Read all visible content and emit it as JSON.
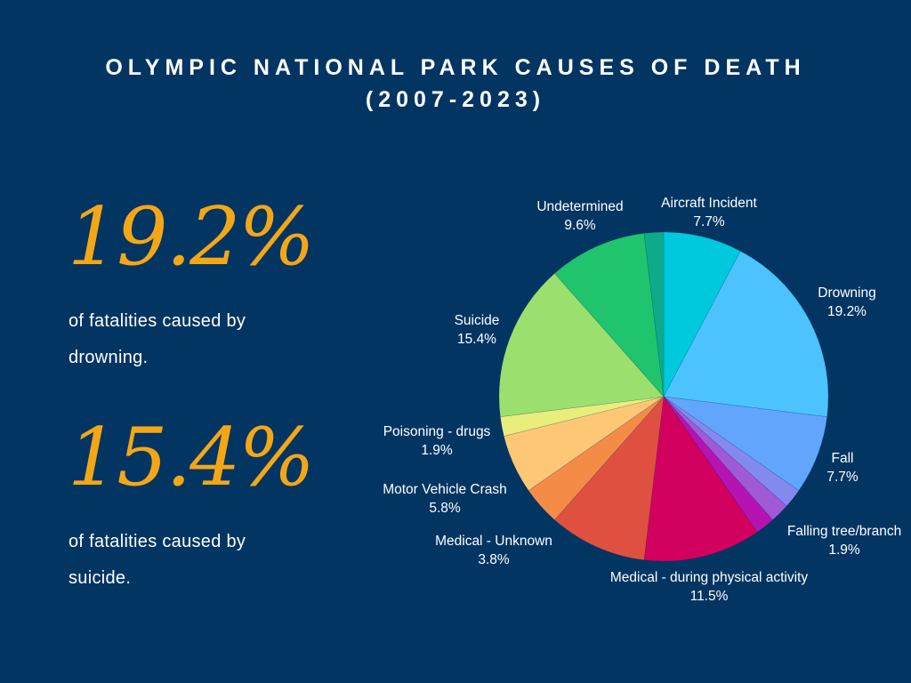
{
  "title_line1": "OLYMPIC NATIONAL PARK CAUSES OF DEATH",
  "title_line2": "(2007-2023)",
  "stats": [
    {
      "value": "19.2%",
      "caption_line1": "of fatalities caused by",
      "caption_line2": "drowning."
    },
    {
      "value": "15.4%",
      "caption_line1": "of fatalities caused by",
      "caption_line2": "suicide."
    }
  ],
  "chart_data": {
    "type": "pie",
    "title": "OLYMPIC NATIONAL PARK CAUSES OF DEATH (2007-2023)",
    "slices": [
      {
        "label": "Aircraft Incident",
        "value": 7.7,
        "display": "7.7%",
        "color": "#00c9de"
      },
      {
        "label": "Drowning",
        "value": 19.2,
        "display": "19.2%",
        "color": "#4cc3fc"
      },
      {
        "label": "Fall",
        "value": 7.7,
        "display": "7.7%",
        "color": "#62a5fc"
      },
      {
        "label": "",
        "value": 1.9,
        "display": "",
        "color": "#8489f0"
      },
      {
        "label": "Falling tree/branch",
        "value": 1.9,
        "display": "1.9%",
        "color": "#a05ad6"
      },
      {
        "label": "",
        "value": 1.9,
        "display": "",
        "color": "#b514b3"
      },
      {
        "label": "Medical - during physical activity",
        "value": 11.5,
        "display": "11.5%",
        "color": "#d2005f"
      },
      {
        "label": "",
        "value": 9.6,
        "display": "",
        "color": "#e05040"
      },
      {
        "label": "Medical - Unknown",
        "value": 3.8,
        "display": "3.8%",
        "color": "#f48c48"
      },
      {
        "label": "Motor Vehicle Crash",
        "value": 5.8,
        "display": "5.8%",
        "color": "#fec776"
      },
      {
        "label": "Poisoning - drugs",
        "value": 1.9,
        "display": "1.9%",
        "color": "#e8ed7c"
      },
      {
        "label": "Suicide",
        "value": 15.4,
        "display": "15.4%",
        "color": "#9be06e"
      },
      {
        "label": "Undetermined",
        "value": 9.6,
        "display": "9.6%",
        "color": "#1fc46d"
      },
      {
        "label": "",
        "value": 1.9,
        "display": "",
        "color": "#0dab8a"
      }
    ]
  }
}
